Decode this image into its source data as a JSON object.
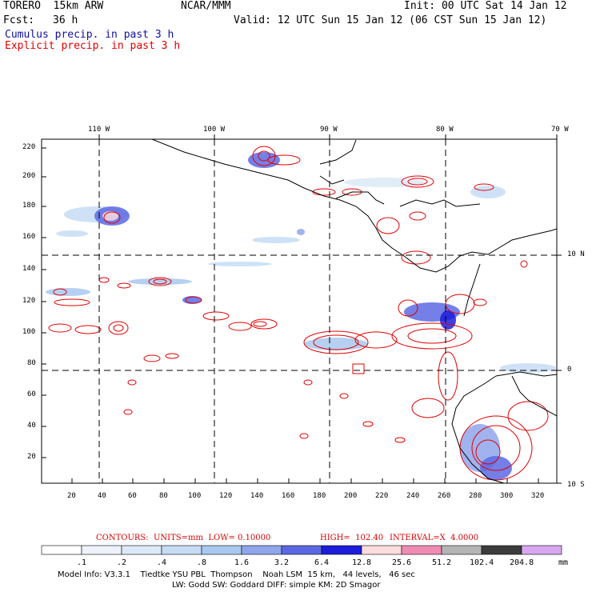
{
  "header": {
    "model": "TORERO  15km ARW",
    "org": "NCAR/MMM",
    "init": "Init: 00 UTC Sat 14 Jan 12",
    "fcst_label": "Fcst:",
    "fcst_value": "36 h",
    "valid": "Valid: 12 UTC Sun 15 Jan 12 (06 CST Sun 15 Jan 12)",
    "field1": "Cumulus precip. in past 3 h",
    "field2": "Explicit precip. in past 3 h",
    "field1_color": "#1010a0",
    "field2_color": "#e00000"
  },
  "axes": {
    "top_lon": [
      "110 W",
      "100 W",
      "90 W",
      "80 W",
      "70 W"
    ],
    "right_lat": [
      "10 N",
      "0",
      "10 S"
    ],
    "left_y": [
      "220",
      "200",
      "180",
      "160",
      "140",
      "120",
      "100",
      "80",
      "60",
      "40",
      "20"
    ],
    "bottom_x": [
      "20",
      "40",
      "60",
      "80",
      "100",
      "120",
      "140",
      "160",
      "180",
      "200",
      "220",
      "240",
      "260",
      "280",
      "300",
      "320"
    ]
  },
  "contours": {
    "units": "CONTOURS:  UNITS=mm  LOW= 0.10000",
    "high": "HIGH=  102.40",
    "interval": "INTERVAL=X  4.0000"
  },
  "colorbar": {
    "labels": [
      ".1",
      ".2",
      ".4",
      ".8",
      "1.6",
      "3.2",
      "6.4",
      "12.8",
      "25.6",
      "51.2",
      "102.4",
      "204.8"
    ],
    "unit": "mm",
    "colors": [
      "#ffffff",
      "#eef3fb",
      "#dce9f8",
      "#c6dcf4",
      "#a9c8ef",
      "#8fa6ec",
      "#5c68e3",
      "#1c1cdb",
      "#fcdcdc",
      "#ef8cb5",
      "#b4b4b4",
      "#3c3c3c",
      "#d7a8f0"
    ]
  },
  "info": {
    "line1": "Model Info: V3.3.1    Tiedtke YSU PBL  Thompson    Noah LSM  15 km,   44 levels,   46 sec",
    "line2": "LW: Godd SW: Goddard DIFF: simple KM: 2D Smagor"
  }
}
